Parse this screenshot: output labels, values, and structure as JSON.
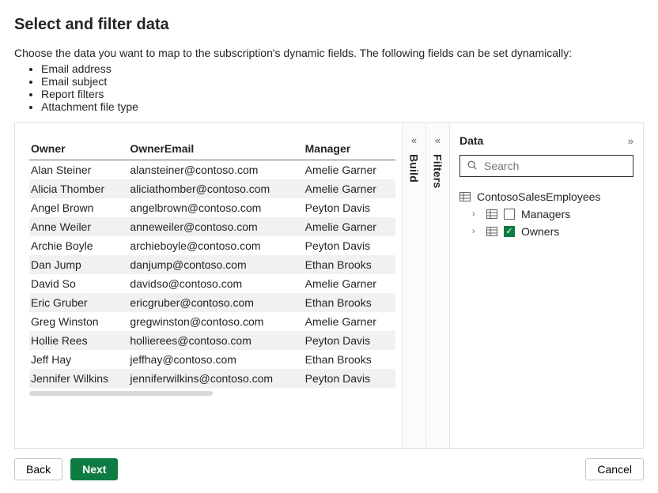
{
  "page": {
    "title": "Select and filter data",
    "intro": "Choose the data you want to map to the subscription's dynamic fields. The following fields can be set dynamically:",
    "dynamic_fields": [
      "Email address",
      "Email subject",
      "Report filters",
      "Attachment file type"
    ]
  },
  "table": {
    "columns": [
      "Owner",
      "OwnerEmail",
      "Manager"
    ],
    "rows": [
      [
        "Alan Steiner",
        "alansteiner@contoso.com",
        "Amelie Garner"
      ],
      [
        "Alicia Thomber",
        "aliciathomber@contoso.com",
        "Amelie Garner"
      ],
      [
        "Angel Brown",
        "angelbrown@contoso.com",
        "Peyton Davis"
      ],
      [
        "Anne Weiler",
        "anneweiler@contoso.com",
        "Amelie Garner"
      ],
      [
        "Archie Boyle",
        "archieboyle@contoso.com",
        "Peyton Davis"
      ],
      [
        "Dan Jump",
        "danjump@contoso.com",
        "Ethan Brooks"
      ],
      [
        "David So",
        "davidso@contoso.com",
        "Amelie Garner"
      ],
      [
        "Eric Gruber",
        "ericgruber@contoso.com",
        "Ethan Brooks"
      ],
      [
        "Greg Winston",
        "gregwinston@contoso.com",
        "Amelie Garner"
      ],
      [
        "Hollie Rees",
        "hollierees@contoso.com",
        "Peyton Davis"
      ],
      [
        "Jeff Hay",
        "jeffhay@contoso.com",
        "Ethan Brooks"
      ],
      [
        "Jennifer Wilkins",
        "jenniferwilkins@contoso.com",
        "Peyton Davis"
      ]
    ]
  },
  "rails": {
    "build": "Build",
    "filters": "Filters"
  },
  "data_pane": {
    "title": "Data",
    "search_placeholder": "Search",
    "root": "ContosoSalesEmployees",
    "children": [
      {
        "label": "Managers",
        "checked": false
      },
      {
        "label": "Owners",
        "checked": true
      }
    ]
  },
  "buttons": {
    "back": "Back",
    "next": "Next",
    "cancel": "Cancel"
  },
  "colors": {
    "primary": "#0e7c42",
    "row_stripe": "#f1f1f1",
    "border": "#e0e0e0",
    "text": "#242424"
  }
}
